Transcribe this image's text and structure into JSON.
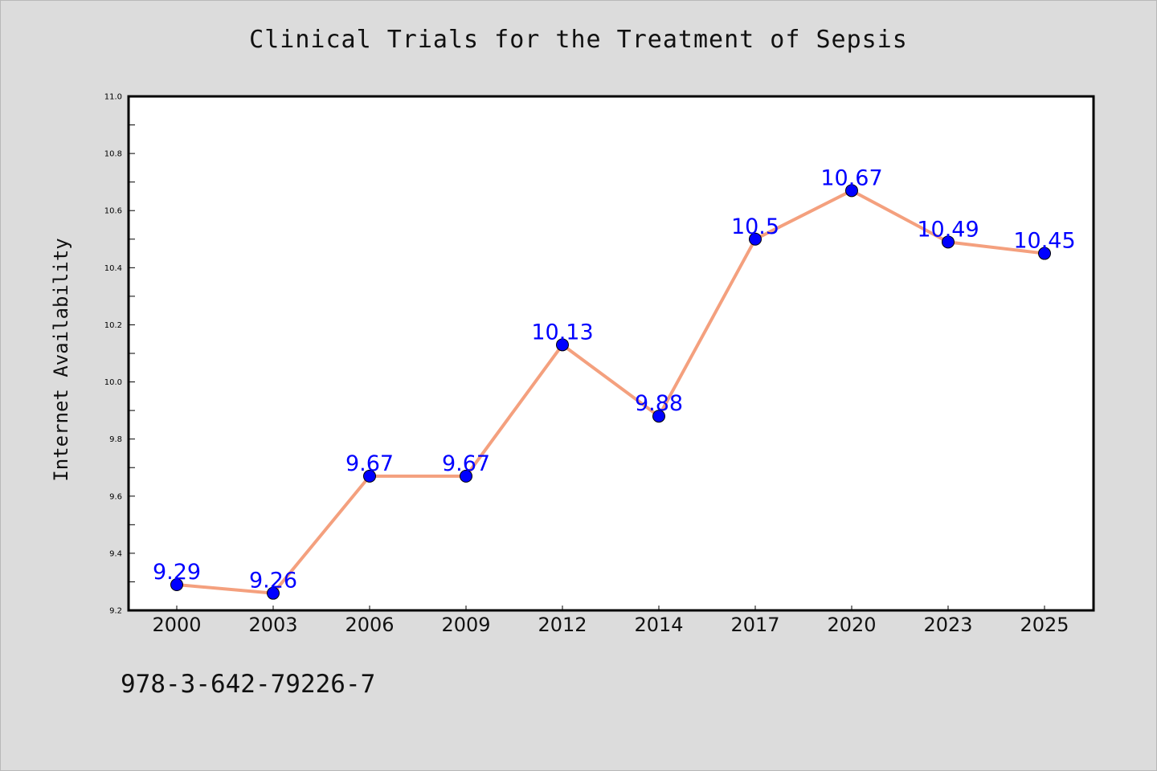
{
  "title": "Clinical Trials for the Treatment of Sepsis",
  "footnote": "978-3-642-79226-7",
  "colors": {
    "background": "#dcdcdc",
    "plot_background": "#ffffff",
    "line": "#f4a07e",
    "marker": "#0000ff",
    "label": "#0000ff"
  },
  "chart_data": {
    "type": "line",
    "title": "Clinical Trials for the Treatment of Sepsis",
    "xlabel": "",
    "ylabel": "Internet Availability",
    "categories": [
      "2000",
      "2003",
      "2006",
      "2009",
      "2012",
      "2014",
      "2017",
      "2020",
      "2023",
      "2025"
    ],
    "series": [
      {
        "values": [
          9.29,
          9.26,
          9.67,
          9.67,
          10.13,
          9.88,
          10.5,
          10.67,
          10.49,
          10.45
        ],
        "labels": [
          "9.29",
          "9.26",
          "9.67",
          "9.67",
          "10.13",
          "9.88",
          "10.5",
          "10.67",
          "10.49",
          "10.45"
        ]
      }
    ],
    "ylim": [
      9.2,
      11.0
    ],
    "yticks": [
      "9.2",
      "9.4",
      "9.6",
      "9.8",
      "10.0",
      "10.2",
      "10.4",
      "10.6",
      "10.8",
      "11.0"
    ],
    "grid": false,
    "legend": "none"
  }
}
